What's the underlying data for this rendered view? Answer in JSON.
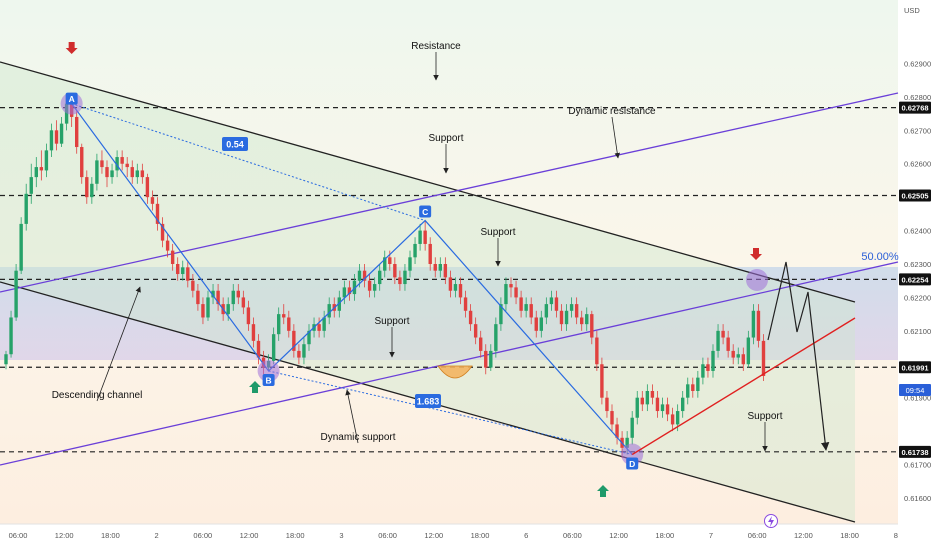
{
  "chart_data": {
    "type": "candlestick",
    "currency_label": "USD",
    "y_range": [
      0.6154,
      0.6306
    ],
    "y_ticks": [
      "0.62900",
      "0.62800",
      "0.62700",
      "0.62600",
      "0.62400",
      "0.62300",
      "0.62200",
      "0.62100",
      "0.61900",
      "0.61700",
      "0.61600"
    ],
    "y_tick_values": [
      0.629,
      0.628,
      0.627,
      0.626,
      0.624,
      0.623,
      0.622,
      0.621,
      0.619,
      0.617,
      0.616
    ],
    "price_badges": [
      {
        "label": "0.62768",
        "value": 0.62768,
        "color": "#111111"
      },
      {
        "label": "0.62505",
        "value": 0.62505,
        "color": "#111111"
      },
      {
        "label": "0.62254",
        "value": 0.62254,
        "color": "#111111"
      },
      {
        "label": "0.61991",
        "value": 0.61991,
        "color": "#111111"
      },
      {
        "label": "0.61738",
        "value": 0.61738,
        "color": "#111111"
      }
    ],
    "current_price": {
      "value": 0.61965,
      "countdown": "09:54",
      "color": "#2a5fd8"
    },
    "x_ticks": [
      "06:00",
      "12:00",
      "18:00",
      "2",
      "06:00",
      "12:00",
      "18:00",
      "3",
      "06:00",
      "12:00",
      "18:00",
      "6",
      "06:00",
      "12:00",
      "18:00",
      "7",
      "06:00",
      "12:00",
      "18:00",
      "8"
    ],
    "fib_label": "50.00%",
    "annotations": {
      "resistance": "Resistance",
      "dynamic_resistance": "Dynamic resistance",
      "support_top": "Support",
      "support_mid": "Support",
      "support_center": "Support",
      "support_right": "Support",
      "descending_channel": "Descending channel",
      "dynamic_support": "Dynamic support"
    },
    "pattern_points": [
      {
        "label": "A",
        "bar": 13,
        "value": 0.6278
      },
      {
        "label": "B",
        "bar": 52,
        "value": 0.6198
      },
      {
        "label": "C",
        "bar": 83,
        "value": 0.6243
      },
      {
        "label": "D",
        "bar": 124,
        "value": 0.6173
      }
    ],
    "ratios": {
      "ab_ratio": "0.54",
      "cd_ratio": "1.683"
    },
    "colors": {
      "up": "#26a269",
      "down": "#e0403f",
      "pattern": "#2a6be0",
      "channel": "#222222",
      "dynamic": "#6a3fd8",
      "trend": "#e02020"
    },
    "candles": [
      [
        0.62,
        0.6203,
        0.6204,
        0.61985
      ],
      [
        0.6203,
        0.6214,
        0.6216,
        0.6202
      ],
      [
        0.6214,
        0.6228,
        0.623,
        0.6213
      ],
      [
        0.6228,
        0.6242,
        0.6244,
        0.6227
      ],
      [
        0.6242,
        0.6251,
        0.6254,
        0.624
      ],
      [
        0.6251,
        0.6256,
        0.626,
        0.6248
      ],
      [
        0.6256,
        0.6259,
        0.6262,
        0.6253
      ],
      [
        0.6259,
        0.6258,
        0.6264,
        0.6255
      ],
      [
        0.6258,
        0.6264,
        0.6266,
        0.6256
      ],
      [
        0.6264,
        0.627,
        0.6272,
        0.6262
      ],
      [
        0.627,
        0.6266,
        0.6273,
        0.6264
      ],
      [
        0.6266,
        0.6272,
        0.6274,
        0.6265
      ],
      [
        0.6272,
        0.6278,
        0.628,
        0.627
      ],
      [
        0.6278,
        0.6274,
        0.6281,
        0.6271
      ],
      [
        0.6274,
        0.6265,
        0.6276,
        0.6263
      ],
      [
        0.6265,
        0.6256,
        0.6266,
        0.6254
      ],
      [
        0.6256,
        0.625,
        0.6258,
        0.6248
      ],
      [
        0.625,
        0.6254,
        0.6256,
        0.6248
      ],
      [
        0.6254,
        0.6261,
        0.6263,
        0.6252
      ],
      [
        0.6261,
        0.6259,
        0.6264,
        0.6257
      ],
      [
        0.6259,
        0.6256,
        0.6261,
        0.6253
      ],
      [
        0.6256,
        0.6258,
        0.626,
        0.6254
      ],
      [
        0.6258,
        0.6262,
        0.6264,
        0.6256
      ],
      [
        0.6262,
        0.626,
        0.6264,
        0.6258
      ],
      [
        0.626,
        0.6259,
        0.6262,
        0.6256
      ],
      [
        0.6259,
        0.6256,
        0.6261,
        0.6254
      ],
      [
        0.6256,
        0.6258,
        0.626,
        0.6254
      ],
      [
        0.6258,
        0.6256,
        0.626,
        0.6254
      ],
      [
        0.6256,
        0.625,
        0.6257,
        0.6248
      ],
      [
        0.625,
        0.6248,
        0.6252,
        0.6246
      ],
      [
        0.6248,
        0.6242,
        0.625,
        0.624
      ],
      [
        0.6242,
        0.6237,
        0.6244,
        0.6235
      ],
      [
        0.6237,
        0.6234,
        0.6239,
        0.6232
      ],
      [
        0.6234,
        0.623,
        0.6236,
        0.6228
      ],
      [
        0.623,
        0.6227,
        0.6232,
        0.6225
      ],
      [
        0.6227,
        0.6229,
        0.6231,
        0.6225
      ],
      [
        0.6229,
        0.6225,
        0.6231,
        0.6223
      ],
      [
        0.6225,
        0.6222,
        0.6227,
        0.622
      ],
      [
        0.6222,
        0.6218,
        0.6224,
        0.6216
      ],
      [
        0.6218,
        0.6214,
        0.622,
        0.6212
      ],
      [
        0.6214,
        0.622,
        0.6222,
        0.6213
      ],
      [
        0.622,
        0.6222,
        0.6224,
        0.6218
      ],
      [
        0.6222,
        0.6218,
        0.6224,
        0.6216
      ],
      [
        0.6218,
        0.6215,
        0.622,
        0.6213
      ],
      [
        0.6215,
        0.6218,
        0.622,
        0.6213
      ],
      [
        0.6218,
        0.6222,
        0.6224,
        0.6216
      ],
      [
        0.6222,
        0.622,
        0.6224,
        0.6218
      ],
      [
        0.622,
        0.6217,
        0.6222,
        0.6215
      ],
      [
        0.6217,
        0.6212,
        0.6219,
        0.621
      ],
      [
        0.6212,
        0.6207,
        0.6214,
        0.6205
      ],
      [
        0.6207,
        0.6202,
        0.6209,
        0.62
      ],
      [
        0.6202,
        0.6199,
        0.6204,
        0.6197
      ],
      [
        0.6199,
        0.6201,
        0.6203,
        0.6198
      ],
      [
        0.6201,
        0.6209,
        0.6211,
        0.62
      ],
      [
        0.6209,
        0.6215,
        0.6217,
        0.6207
      ],
      [
        0.6215,
        0.6214,
        0.6218,
        0.6212
      ],
      [
        0.6214,
        0.621,
        0.6216,
        0.6208
      ],
      [
        0.621,
        0.6204,
        0.6212,
        0.6202
      ],
      [
        0.6204,
        0.6202,
        0.6206,
        0.62
      ],
      [
        0.6202,
        0.6206,
        0.6208,
        0.62
      ],
      [
        0.6206,
        0.621,
        0.6212,
        0.6204
      ],
      [
        0.621,
        0.6212,
        0.6214,
        0.6208
      ],
      [
        0.6212,
        0.621,
        0.6214,
        0.6208
      ],
      [
        0.621,
        0.6214,
        0.6216,
        0.6208
      ],
      [
        0.6214,
        0.6218,
        0.622,
        0.6212
      ],
      [
        0.6218,
        0.6216,
        0.622,
        0.6214
      ],
      [
        0.6216,
        0.622,
        0.6222,
        0.6214
      ],
      [
        0.622,
        0.6223,
        0.6225,
        0.6218
      ],
      [
        0.6223,
        0.6221,
        0.6225,
        0.6219
      ],
      [
        0.6221,
        0.6225,
        0.6227,
        0.6219
      ],
      [
        0.6225,
        0.6228,
        0.623,
        0.6223
      ],
      [
        0.6228,
        0.6225,
        0.623,
        0.6223
      ],
      [
        0.6225,
        0.6222,
        0.6227,
        0.622
      ],
      [
        0.6222,
        0.6224,
        0.6226,
        0.622
      ],
      [
        0.6224,
        0.6228,
        0.623,
        0.6222
      ],
      [
        0.6228,
        0.6232,
        0.6234,
        0.6226
      ],
      [
        0.6232,
        0.623,
        0.6234,
        0.6228
      ],
      [
        0.623,
        0.6226,
        0.6232,
        0.6224
      ],
      [
        0.6226,
        0.6224,
        0.6228,
        0.6222
      ],
      [
        0.6224,
        0.6228,
        0.623,
        0.6222
      ],
      [
        0.6228,
        0.6232,
        0.6234,
        0.6226
      ],
      [
        0.6232,
        0.6236,
        0.6238,
        0.623
      ],
      [
        0.6236,
        0.624,
        0.6242,
        0.6234
      ],
      [
        0.624,
        0.6236,
        0.6243,
        0.6234
      ],
      [
        0.6236,
        0.623,
        0.6238,
        0.6228
      ],
      [
        0.623,
        0.6228,
        0.6232,
        0.6226
      ],
      [
        0.6228,
        0.623,
        0.6232,
        0.6226
      ],
      [
        0.623,
        0.6226,
        0.6232,
        0.6224
      ],
      [
        0.6226,
        0.6222,
        0.6228,
        0.622
      ],
      [
        0.6222,
        0.6224,
        0.6226,
        0.622
      ],
      [
        0.6224,
        0.622,
        0.6226,
        0.6218
      ],
      [
        0.622,
        0.6216,
        0.6222,
        0.6214
      ],
      [
        0.6216,
        0.6212,
        0.6218,
        0.621
      ],
      [
        0.6212,
        0.6208,
        0.6214,
        0.6206
      ],
      [
        0.6208,
        0.6204,
        0.621,
        0.6202
      ],
      [
        0.6204,
        0.6199,
        0.6206,
        0.6197
      ],
      [
        0.6199,
        0.6204,
        0.6206,
        0.6198
      ],
      [
        0.6204,
        0.6212,
        0.6214,
        0.6202
      ],
      [
        0.6212,
        0.6218,
        0.622,
        0.621
      ],
      [
        0.6218,
        0.6224,
        0.6226,
        0.6216
      ],
      [
        0.6224,
        0.6223,
        0.6226,
        0.622
      ],
      [
        0.6223,
        0.622,
        0.6225,
        0.6218
      ],
      [
        0.622,
        0.6216,
        0.6222,
        0.6214
      ],
      [
        0.6216,
        0.6218,
        0.622,
        0.6214
      ],
      [
        0.6218,
        0.6214,
        0.622,
        0.6212
      ],
      [
        0.6214,
        0.621,
        0.6216,
        0.6208
      ],
      [
        0.621,
        0.6214,
        0.6216,
        0.6208
      ],
      [
        0.6214,
        0.6218,
        0.622,
        0.6212
      ],
      [
        0.6218,
        0.622,
        0.6222,
        0.6216
      ],
      [
        0.622,
        0.6216,
        0.6222,
        0.6214
      ],
      [
        0.6216,
        0.6212,
        0.6218,
        0.621
      ],
      [
        0.6212,
        0.6216,
        0.6218,
        0.621
      ],
      [
        0.6216,
        0.6218,
        0.622,
        0.6214
      ],
      [
        0.6218,
        0.6214,
        0.622,
        0.6212
      ],
      [
        0.6214,
        0.6212,
        0.6216,
        0.621
      ],
      [
        0.6212,
        0.6215,
        0.6217,
        0.621
      ],
      [
        0.6215,
        0.6208,
        0.6216,
        0.6206
      ],
      [
        0.6208,
        0.62,
        0.621,
        0.6198
      ],
      [
        0.62,
        0.619,
        0.6202,
        0.6188
      ],
      [
        0.619,
        0.6186,
        0.6192,
        0.6184
      ],
      [
        0.6186,
        0.6182,
        0.6188,
        0.618
      ],
      [
        0.6182,
        0.6178,
        0.6184,
        0.6176
      ],
      [
        0.6178,
        0.6175,
        0.618,
        0.6172
      ],
      [
        0.6175,
        0.6178,
        0.618,
        0.6173
      ],
      [
        0.6178,
        0.6184,
        0.6186,
        0.6176
      ],
      [
        0.6184,
        0.619,
        0.6192,
        0.6182
      ],
      [
        0.619,
        0.6188,
        0.6192,
        0.6186
      ],
      [
        0.6188,
        0.6192,
        0.6194,
        0.6186
      ],
      [
        0.6192,
        0.619,
        0.6194,
        0.6188
      ],
      [
        0.619,
        0.6186,
        0.6192,
        0.6184
      ],
      [
        0.6186,
        0.6188,
        0.619,
        0.6184
      ],
      [
        0.6188,
        0.6185,
        0.619,
        0.6183
      ],
      [
        0.6185,
        0.6182,
        0.6187,
        0.618
      ],
      [
        0.6182,
        0.6186,
        0.6188,
        0.618
      ],
      [
        0.6186,
        0.619,
        0.6192,
        0.6184
      ],
      [
        0.619,
        0.6194,
        0.6196,
        0.6188
      ],
      [
        0.6194,
        0.6192,
        0.6196,
        0.619
      ],
      [
        0.6192,
        0.6196,
        0.6198,
        0.619
      ],
      [
        0.6196,
        0.62,
        0.6202,
        0.6194
      ],
      [
        0.62,
        0.6198,
        0.6202,
        0.6196
      ],
      [
        0.6198,
        0.6204,
        0.6206,
        0.6196
      ],
      [
        0.6204,
        0.621,
        0.6212,
        0.6202
      ],
      [
        0.621,
        0.6208,
        0.6212,
        0.6206
      ],
      [
        0.6208,
        0.6204,
        0.621,
        0.6202
      ],
      [
        0.6204,
        0.6202,
        0.6206,
        0.62
      ],
      [
        0.6202,
        0.6203,
        0.6205,
        0.62
      ],
      [
        0.6203,
        0.62,
        0.6205,
        0.6198
      ],
      [
        0.62,
        0.6208,
        0.621,
        0.6199
      ],
      [
        0.6208,
        0.6216,
        0.6218,
        0.6206
      ],
      [
        0.6216,
        0.6207,
        0.6218,
        0.6205
      ],
      [
        0.6207,
        0.61965,
        0.6209,
        0.6195
      ]
    ]
  }
}
